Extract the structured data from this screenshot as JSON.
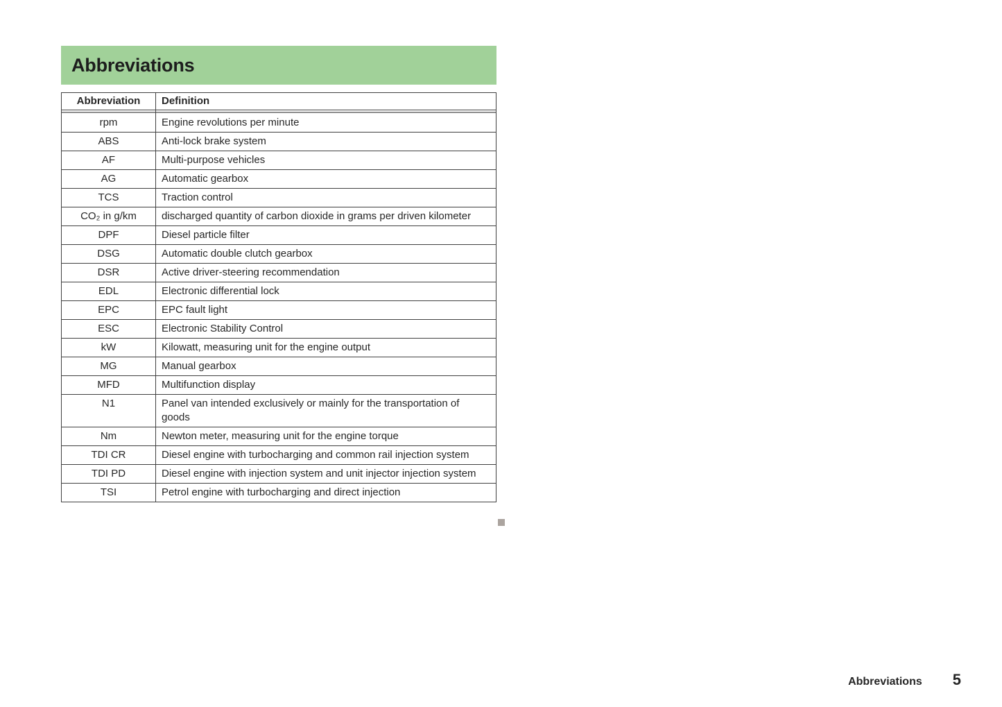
{
  "page": {
    "title": "Abbreviations",
    "footer": {
      "section_label": "Abbreviations",
      "page_number": "5"
    }
  },
  "colors": {
    "header_bg": "#a1d199",
    "border": "#3f3f3f",
    "separator": "#8c8c8c",
    "end_marker": "#aba49f",
    "text": "#262626"
  },
  "table": {
    "headers": [
      "Abbreviation",
      "Definition"
    ],
    "rows": [
      {
        "abbr": "rpm",
        "def": "Engine revolutions per minute"
      },
      {
        "abbr": "ABS",
        "def": "Anti-lock brake system"
      },
      {
        "abbr": "AF",
        "def": "Multi-purpose vehicles"
      },
      {
        "abbr": "AG",
        "def": "Automatic gearbox"
      },
      {
        "abbr": "TCS",
        "def": "Traction control"
      },
      {
        "abbr": "CO₂ in g/km",
        "def": "discharged quantity of carbon dioxide in grams per driven kilo­meter"
      },
      {
        "abbr": "DPF",
        "def": "Diesel particle filter"
      },
      {
        "abbr": "DSG",
        "def": "Automatic double clutch gearbox"
      },
      {
        "abbr": "DSR",
        "def": "Active driver-steering recommendation"
      },
      {
        "abbr": "EDL",
        "def": "Electronic differential lock"
      },
      {
        "abbr": "EPC",
        "def": "EPC fault light"
      },
      {
        "abbr": "ESC",
        "def": "Electronic Stability Control"
      },
      {
        "abbr": "kW",
        "def": "Kilowatt, measuring unit for the engine output"
      },
      {
        "abbr": "MG",
        "def": "Manual gearbox"
      },
      {
        "abbr": "MFD",
        "def": "Multifunction display"
      },
      {
        "abbr": "N1",
        "def": "Panel van intended exclusively or mainly for the transporta­tion of goods"
      },
      {
        "abbr": "Nm",
        "def": "Newton meter, measuring unit for the engine torque"
      },
      {
        "abbr": "TDI CR",
        "def": "Diesel engine with turbocharging and common rail injection system"
      },
      {
        "abbr": "TDI PD",
        "def": "Diesel engine with injection system and unit injector injection system"
      },
      {
        "abbr": "TSI",
        "def": "Petrol engine with turbocharging and direct injection"
      }
    ]
  }
}
